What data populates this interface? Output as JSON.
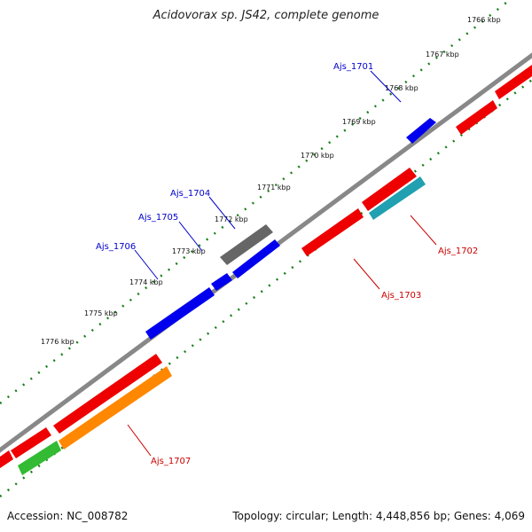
{
  "title": "Acidovorax sp. JS42, complete genome",
  "footer": {
    "accession": "Accession: NC_008782",
    "summary": "Topology: circular; Length: 4,448,856 bp; Genes: 4,069"
  },
  "colors": {
    "backbone": "#888888",
    "forward_gene": "#0000ee",
    "reverse_gene": "#ee0000",
    "pseudo": "#666666",
    "tick": "#1a7f1a",
    "label_forward": "#0000cc",
    "label_reverse": "#cc0000"
  },
  "ticks": [
    "1766 kbp",
    "1767 kbp",
    "1768 kbp",
    "1769 kbp",
    "1770 kbp",
    "1771 kbp",
    "1772 kbp",
    "1773 kbp",
    "1774 kbp",
    "1775 kbp",
    "1776 kbp"
  ],
  "gene_labels": {
    "forward": [
      "Ajs_1701",
      "Ajs_1704",
      "Ajs_1705",
      "Ajs_1706"
    ],
    "reverse": [
      "Ajs_1702",
      "Ajs_1703",
      "Ajs_1707"
    ]
  }
}
